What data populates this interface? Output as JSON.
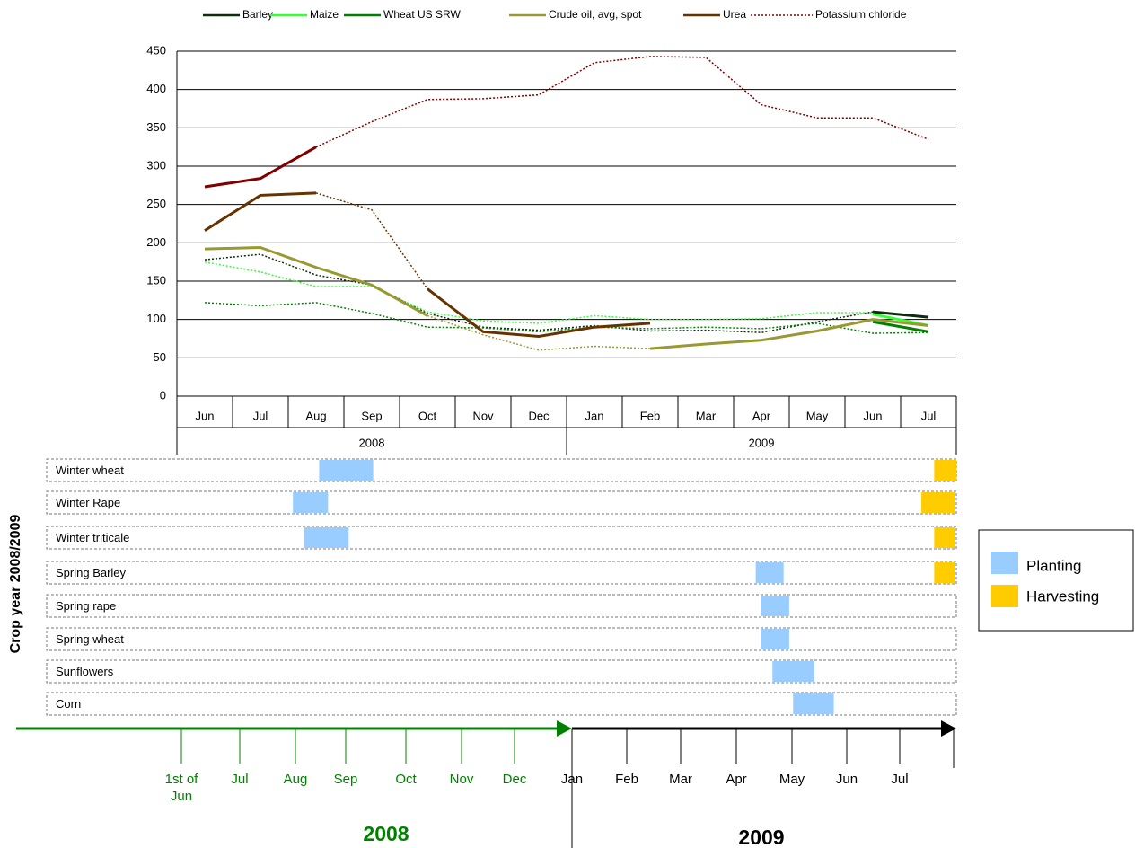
{
  "chart_data": {
    "type": "line",
    "categories": [
      "Jun",
      "Jul",
      "Aug",
      "Sep",
      "Oct",
      "Nov",
      "Dec",
      "Jan",
      "Feb",
      "Mar",
      "Apr",
      "May",
      "Jun",
      "Jul"
    ],
    "category_groups": [
      {
        "label": "2008",
        "categories": 7
      },
      {
        "label": "2009",
        "categories": 7
      }
    ],
    "ylim": [
      0,
      450
    ],
    "yticks": [
      0,
      50,
      100,
      150,
      200,
      250,
      300,
      350,
      400,
      450
    ],
    "grid": true,
    "series": [
      {
        "name": "Barley",
        "color": "#0d2b0d",
        "values": [
          null,
          null,
          null,
          null,
          null,
          null,
          null,
          null,
          null,
          null,
          null,
          null,
          110,
          103
        ],
        "dotted_values": [
          178,
          185,
          158,
          145,
          108,
          90,
          86,
          92,
          85,
          86,
          83,
          97,
          110,
          null
        ]
      },
      {
        "name": "Maize",
        "color": "#33ff33",
        "values": [
          null,
          null,
          null,
          null,
          null,
          null,
          null,
          null,
          null,
          null,
          null,
          null,
          107,
          92
        ],
        "dotted_values": [
          175,
          162,
          143,
          143,
          110,
          98,
          95,
          105,
          100,
          100,
          101,
          109,
          109,
          null
        ]
      },
      {
        "name": "Wheat US SRW",
        "color": "#008000",
        "values": [
          null,
          null,
          null,
          null,
          null,
          null,
          null,
          null,
          null,
          null,
          null,
          null,
          97,
          84
        ],
        "dotted_values": [
          122,
          118,
          122,
          108,
          90,
          89,
          84,
          90,
          88,
          90,
          88,
          95,
          82,
          83
        ]
      },
      {
        "name": "Crude oil, avg, spot",
        "color": "#999933",
        "values": [
          192,
          194,
          168,
          145,
          105,
          null,
          null,
          null,
          62,
          68,
          73,
          85,
          100,
          92
        ],
        "dotted_values": [
          null,
          null,
          null,
          null,
          105,
          80,
          60,
          65,
          62,
          null,
          null,
          null,
          null,
          null
        ]
      },
      {
        "name": "Urea",
        "color": "#663300",
        "values": [
          216,
          262,
          265,
          null,
          140,
          84,
          78,
          90,
          95,
          null,
          null,
          null,
          null,
          null
        ],
        "dotted_values": [
          null,
          null,
          265,
          243,
          140,
          null,
          null,
          null,
          null,
          null,
          null,
          null,
          null,
          null
        ]
      },
      {
        "name": "Potassium chloride",
        "color": "#800000",
        "legend_style": "dotted",
        "values": [
          273,
          284,
          325,
          null,
          null,
          null,
          null,
          null,
          null,
          null,
          null,
          null,
          null,
          null
        ],
        "dotted_values": [
          null,
          null,
          325,
          358,
          387,
          388,
          393,
          435,
          443,
          442,
          380,
          363,
          363,
          335
        ]
      }
    ]
  },
  "crop_calendar": {
    "title": "Crop year 2008/2009",
    "rows": [
      {
        "name": "Winter wheat",
        "planting": [
          2.47,
          3.44
        ],
        "harvesting": [
          13.5,
          13.9
        ]
      },
      {
        "name": "Winter Rape",
        "planting": [
          2.0,
          2.63
        ],
        "harvesting": [
          13.27,
          13.87
        ]
      },
      {
        "name": "Winter triticale",
        "planting": [
          2.2,
          3.0
        ],
        "harvesting": [
          13.5,
          13.87
        ]
      },
      {
        "name": "Spring Barley",
        "planting": [
          10.3,
          10.8
        ],
        "harvesting": [
          13.5,
          13.87
        ]
      },
      {
        "name": "Spring rape",
        "planting": [
          10.4,
          10.9
        ],
        "harvesting": null
      },
      {
        "name": "Spring wheat",
        "planting": [
          10.4,
          10.9
        ],
        "harvesting": null
      },
      {
        "name": "Sunflowers",
        "planting": [
          10.6,
          11.35
        ],
        "harvesting": null
      },
      {
        "name": "Corn",
        "planting": [
          10.97,
          11.7
        ],
        "harvesting": null
      }
    ],
    "legend": [
      {
        "label": "Planting",
        "color": "#99ccff"
      },
      {
        "label": "Harvesting",
        "color": "#ffcc00"
      }
    ],
    "timeline": {
      "labels": [
        "1st of Jun",
        "Jul",
        "Aug",
        "Sep",
        "Oct",
        "Nov",
        "Dec",
        "Jan",
        "Feb",
        "Mar",
        "Apr",
        "May",
        "Jun",
        "Jul"
      ],
      "years": [
        {
          "label": "2008",
          "color": "#008000"
        },
        {
          "label": "2009",
          "color": "#000000"
        }
      ]
    }
  }
}
